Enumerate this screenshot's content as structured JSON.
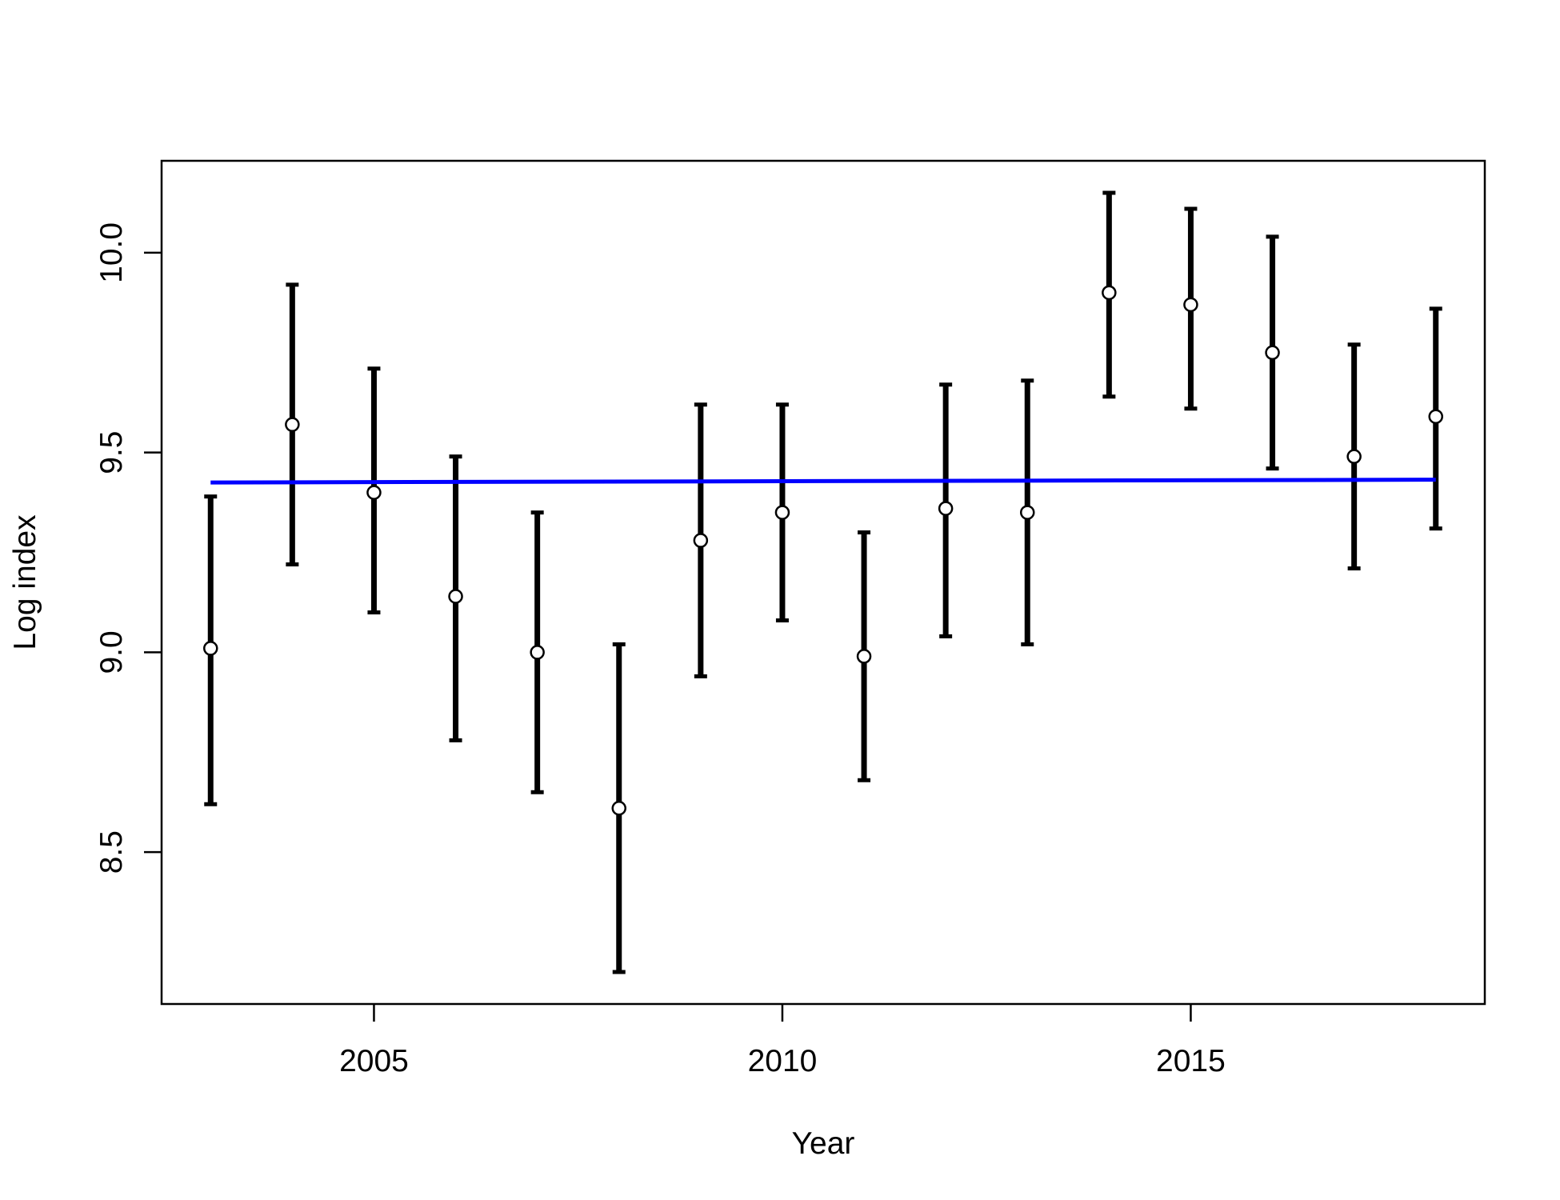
{
  "chart_data": {
    "type": "scatter",
    "title": "",
    "xlabel": "Year",
    "ylabel": "Log index",
    "xlim": [
      2002.4,
      2018.6
    ],
    "ylim": [
      8.12,
      10.23
    ],
    "x_ticks": [
      2005,
      2010,
      2015
    ],
    "y_ticks": [
      8.5,
      9.0,
      9.5,
      10.0
    ],
    "x_tick_labels": [
      "2005",
      "2010",
      "2015"
    ],
    "y_tick_labels": [
      "8.5",
      "9.0",
      "9.5",
      "10.0"
    ],
    "grid": false,
    "series": [
      {
        "kind": "points_with_error_bars",
        "x": [
          2003,
          2004,
          2005,
          2006,
          2007,
          2008,
          2009,
          2010,
          2011,
          2012,
          2013,
          2014,
          2015,
          2016,
          2017,
          2018
        ],
        "y": [
          9.01,
          9.57,
          9.4,
          9.14,
          9.0,
          8.61,
          9.28,
          9.35,
          8.99,
          9.36,
          9.35,
          9.9,
          9.87,
          9.75,
          9.49,
          9.59
        ],
        "lower": [
          8.62,
          9.22,
          9.1,
          8.78,
          8.65,
          8.2,
          8.94,
          9.08,
          8.68,
          9.04,
          9.02,
          9.64,
          9.61,
          9.46,
          9.21,
          9.31
        ],
        "upper": [
          9.39,
          9.92,
          9.71,
          9.49,
          9.35,
          9.02,
          9.62,
          9.62,
          9.3,
          9.67,
          9.68,
          10.15,
          10.11,
          10.04,
          9.77,
          9.86
        ],
        "point_color": "#ffffff",
        "bar_color": "#000000"
      },
      {
        "kind": "line",
        "x": [
          2003,
          2018
        ],
        "y": [
          9.425,
          9.432
        ],
        "color": "#0000ff"
      }
    ]
  }
}
